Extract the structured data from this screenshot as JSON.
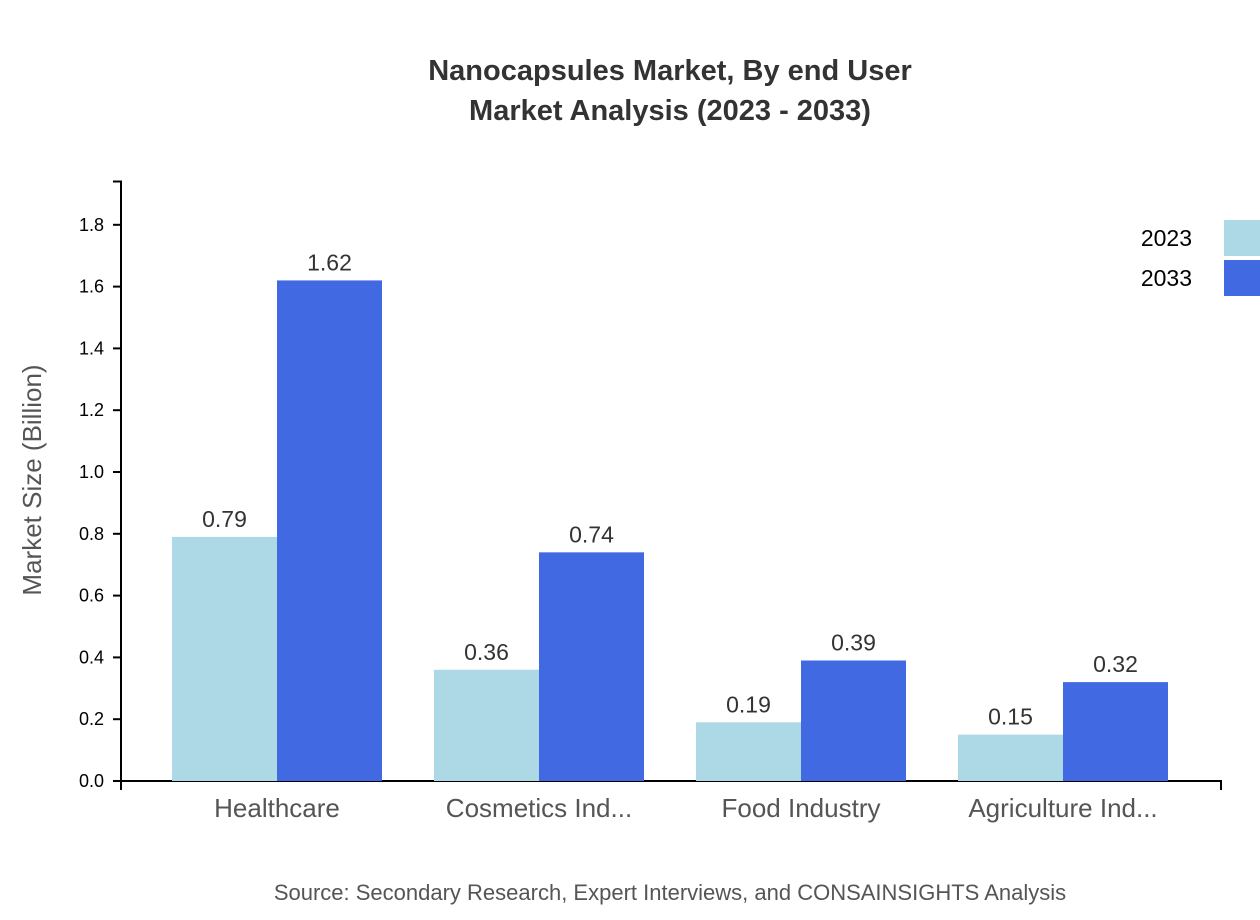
{
  "chart_data": {
    "type": "bar",
    "title": "Nanocapsules Market, By end User",
    "subtitle": "Market Analysis (2023 - 2033)",
    "xlabel": "",
    "ylabel": "Market Size (Billion)",
    "ylim": [
      0,
      1.94
    ],
    "yticks": [
      "0.0",
      "0.2",
      "0.4",
      "0.6",
      "0.8",
      "1.0",
      "1.2",
      "1.4",
      "1.6",
      "1.8"
    ],
    "categories": [
      "Healthcare",
      "Cosmetics Ind...",
      "Food Industry",
      "Agriculture Ind..."
    ],
    "series": [
      {
        "name": "2023",
        "color": "#add8e6",
        "values": [
          0.79,
          0.36,
          0.19,
          0.15
        ]
      },
      {
        "name": "2033",
        "color": "#4169e1",
        "values": [
          1.62,
          0.74,
          0.39,
          0.32
        ]
      }
    ],
    "legend_position": "top-right",
    "grid": false,
    "source": "Source: Secondary Research, Expert Interviews, and CONSAINSIGHTS Analysis"
  }
}
